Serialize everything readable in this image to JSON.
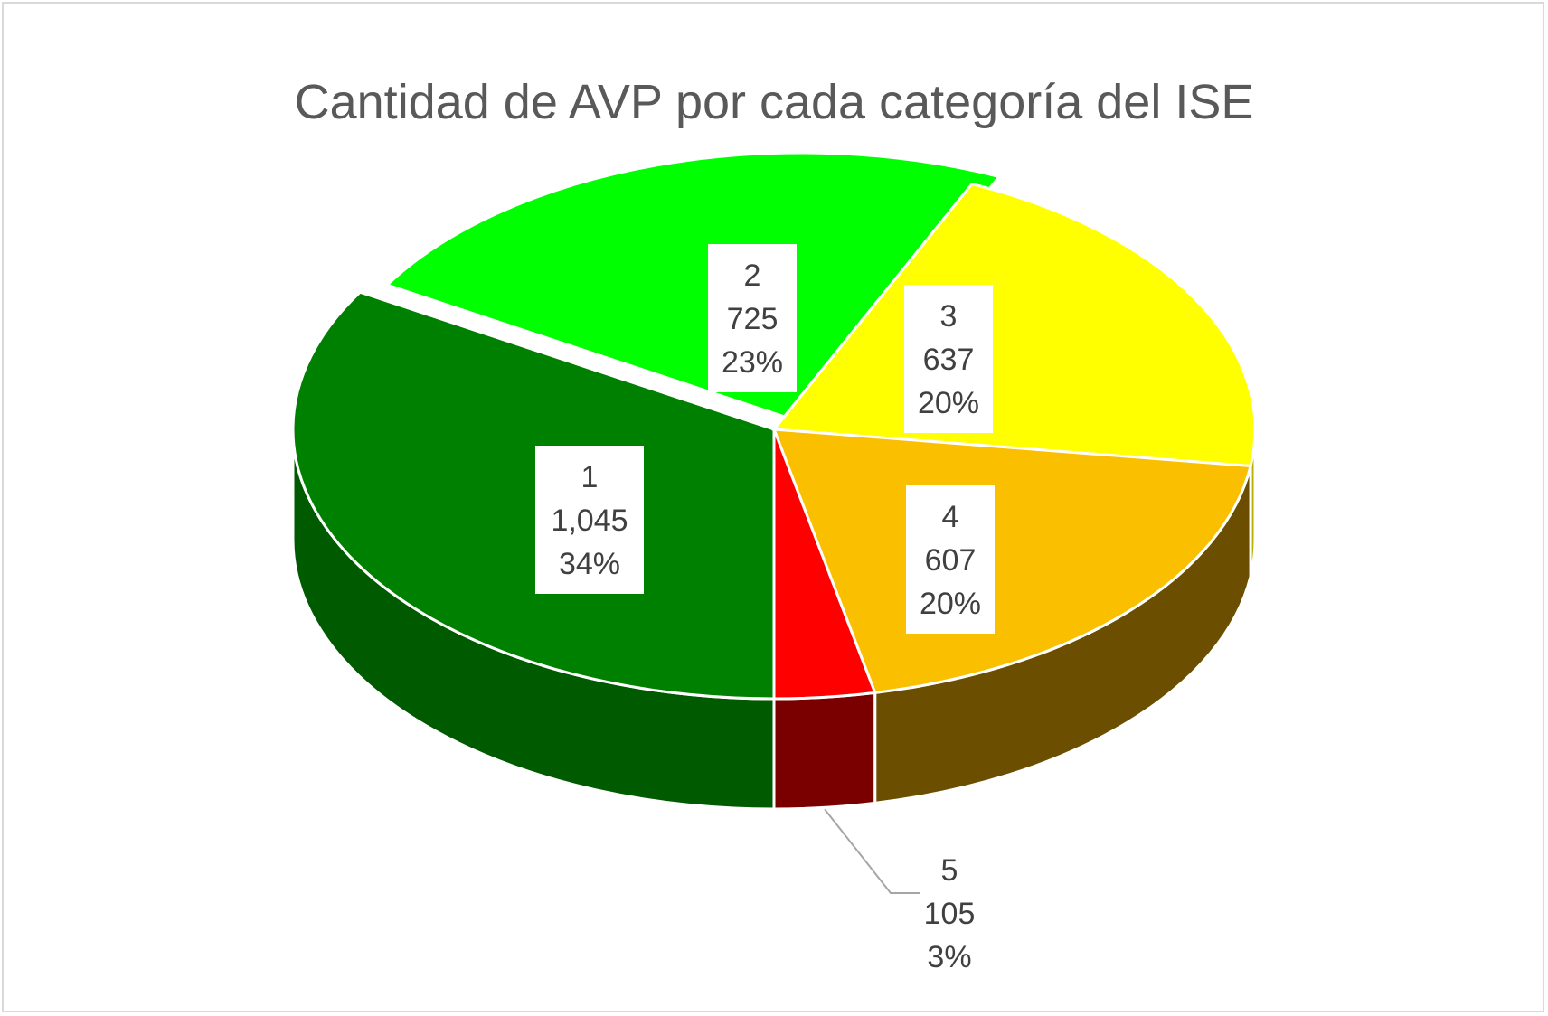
{
  "chart_data": {
    "type": "pie",
    "style": "3d",
    "title": "Cantidad de AVP por cada categoría del ISE",
    "legend": "none",
    "slices": [
      {
        "label": "1",
        "value": 1045,
        "value_text": "1,045",
        "percent": "34%",
        "color": "#008000",
        "side_color": "#005a00"
      },
      {
        "label": "2",
        "value": 725,
        "value_text": "725",
        "percent": "23%",
        "color": "#00ff00",
        "side_color": "#00b000"
      },
      {
        "label": "3",
        "value": 637,
        "value_text": "637",
        "percent": "20%",
        "color": "#ffff00",
        "side_color": "#b3b300"
      },
      {
        "label": "4",
        "value": 607,
        "value_text": "607",
        "percent": "20%",
        "color": "#fac000",
        "side_color": "#6b4e00"
      },
      {
        "label": "5",
        "value": 105,
        "value_text": "105",
        "percent": "3%",
        "color": "#ff0000",
        "side_color": "#7a0000"
      }
    ]
  }
}
